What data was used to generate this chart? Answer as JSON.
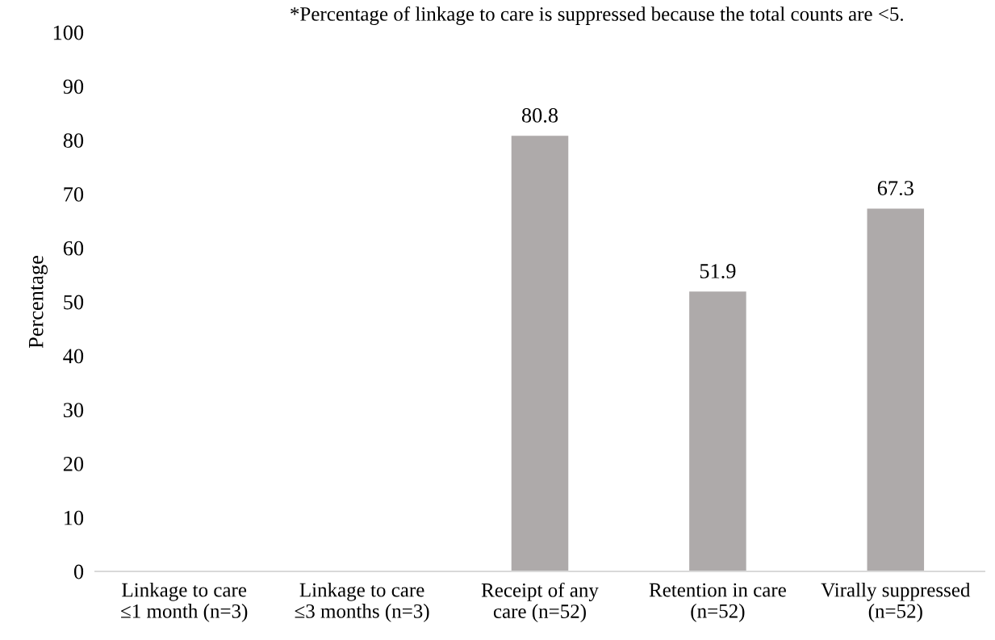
{
  "chart_data": {
    "type": "bar",
    "annotations": [
      "*Percentage of linkage to care is suppressed because the total counts are <5."
    ],
    "ylabel": "Percentage",
    "categories": [
      "Linkage to care\n≤1 month (n=3)",
      "Linkage to care\n≤3 months (n=3)",
      "Receipt of any\ncare (n=52)",
      "Retention in care\n(n=52)",
      "Virally suppressed\n(n=52)"
    ],
    "values": [
      null,
      null,
      80.8,
      51.9,
      67.3
    ],
    "color": "#aeaaaa",
    "data_labels": true,
    "ylim": [
      0,
      100
    ],
    "yticks": [
      0,
      10,
      20,
      30,
      40,
      50,
      60,
      70,
      80,
      90,
      100
    ],
    "grid": false,
    "legend": false
  }
}
